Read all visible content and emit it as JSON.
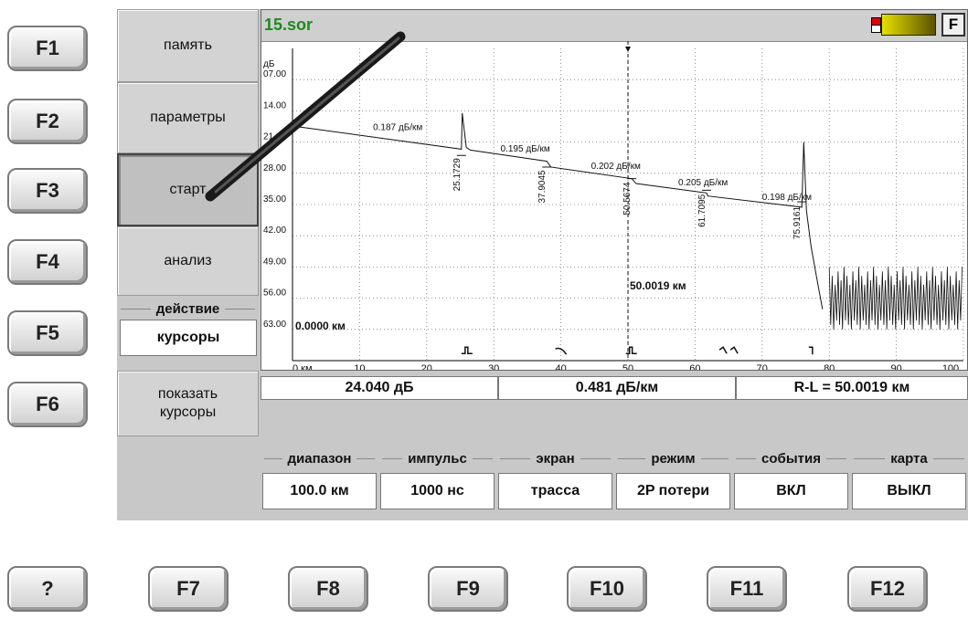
{
  "left_keys": [
    "F1",
    "F2",
    "F3",
    "F4",
    "F5",
    "F6"
  ],
  "bottom_keys": [
    "?",
    "F7",
    "F8",
    "F9",
    "F10",
    "F11",
    "F12"
  ],
  "menu": {
    "memory": "память",
    "params": "параметры",
    "start": "старт",
    "analysis": "анализ",
    "action_label": "действие",
    "action_value": "курсоры",
    "show_cursors": "показать курсоры"
  },
  "file": {
    "name": "15.sor",
    "f_button": "F"
  },
  "stats": {
    "loss": "24.040 дБ",
    "attenuation": "0.481 дБ/км",
    "distance": "R-L = 50.0019 км"
  },
  "settings": [
    {
      "label": "диапазон",
      "value": "100.0 км"
    },
    {
      "label": "импульс",
      "value": "1000 нс"
    },
    {
      "label": "экран",
      "value": "трасса"
    },
    {
      "label": "режим",
      "value": "2P потери"
    },
    {
      "label": "события",
      "value": "ВКЛ"
    },
    {
      "label": "карта",
      "value": "ВЫКЛ"
    }
  ],
  "colors": {
    "filename": "#1d8a1d",
    "battery_fill": "#e6df00",
    "battery_alert": "#e00000"
  },
  "chart_data": {
    "type": "line",
    "ylabel": "дБ",
    "xlabel": "",
    "ytick_labels": [
      "07.00",
      "14.00",
      "21.00",
      "28.00",
      "35.00",
      "42.00",
      "49.00",
      "56.00",
      "63.00"
    ],
    "xtick_labels": [
      "0 км",
      "10",
      "20",
      "30",
      "40",
      "50",
      "60",
      "70",
      "80",
      "90",
      "100"
    ],
    "xlim": [
      0,
      100
    ],
    "ylim": [
      0,
      70
    ],
    "grid": true,
    "series": [
      {
        "x": [
          0,
          0.5,
          25.1729,
          25.3,
          25.9,
          26.5,
          37.9045,
          38.5,
          50.5674,
          51.2,
          61.7095,
          61.9,
          75.9161,
          76.2,
          76.6,
          77.3,
          78.2,
          79.0
        ],
        "values": [
          16.5,
          17.5,
          22.6,
          14.5,
          22.2,
          22.8,
          25.3,
          26.6,
          29.2,
          30.3,
          32.4,
          33.1,
          35.6,
          21.0,
          36.3,
          44.5,
          52.0,
          58.5
        ]
      }
    ],
    "noise_from_km": 80,
    "segment_labels": [
      "0.187 дБ/км",
      "0.195 дБ/км",
      "0.202 дБ/км",
      "0.205 дБ/км",
      "0.198 дБ/км"
    ],
    "event_positions": [
      25.1729,
      37.9045,
      50.5674,
      61.7095,
      75.9161
    ],
    "event_labels": [
      "25.1729",
      "37.9045",
      "50.5674",
      "61.7095",
      "75.9161"
    ],
    "cursor_left": "0.0000 км",
    "cursor_right": "50.0019 км",
    "cursor_right_x": 50.0019
  }
}
